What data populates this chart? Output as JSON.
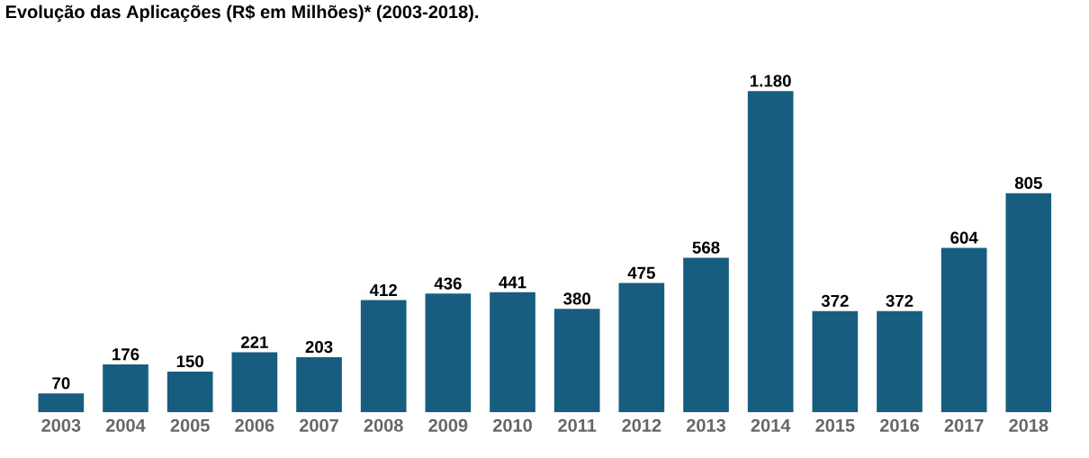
{
  "chart_data": {
    "type": "bar",
    "title": "Evolução das Aplicações (R$ em Milhões)* (2003-2018).",
    "categories": [
      "2003",
      "2004",
      "2005",
      "2006",
      "2007",
      "2008",
      "2009",
      "2010",
      "2011",
      "2012",
      "2013",
      "2014",
      "2015",
      "2016",
      "2017",
      "2018"
    ],
    "values": [
      70,
      176,
      150,
      221,
      203,
      412,
      436,
      441,
      380,
      475,
      568,
      1180,
      372,
      372,
      604,
      805
    ],
    "value_labels": [
      "70",
      "176",
      "150",
      "221",
      "203",
      "412",
      "436",
      "441",
      "380",
      "475",
      "568",
      "1.180",
      "372",
      "372",
      "604",
      "805"
    ],
    "color": "#175d7f"
  }
}
